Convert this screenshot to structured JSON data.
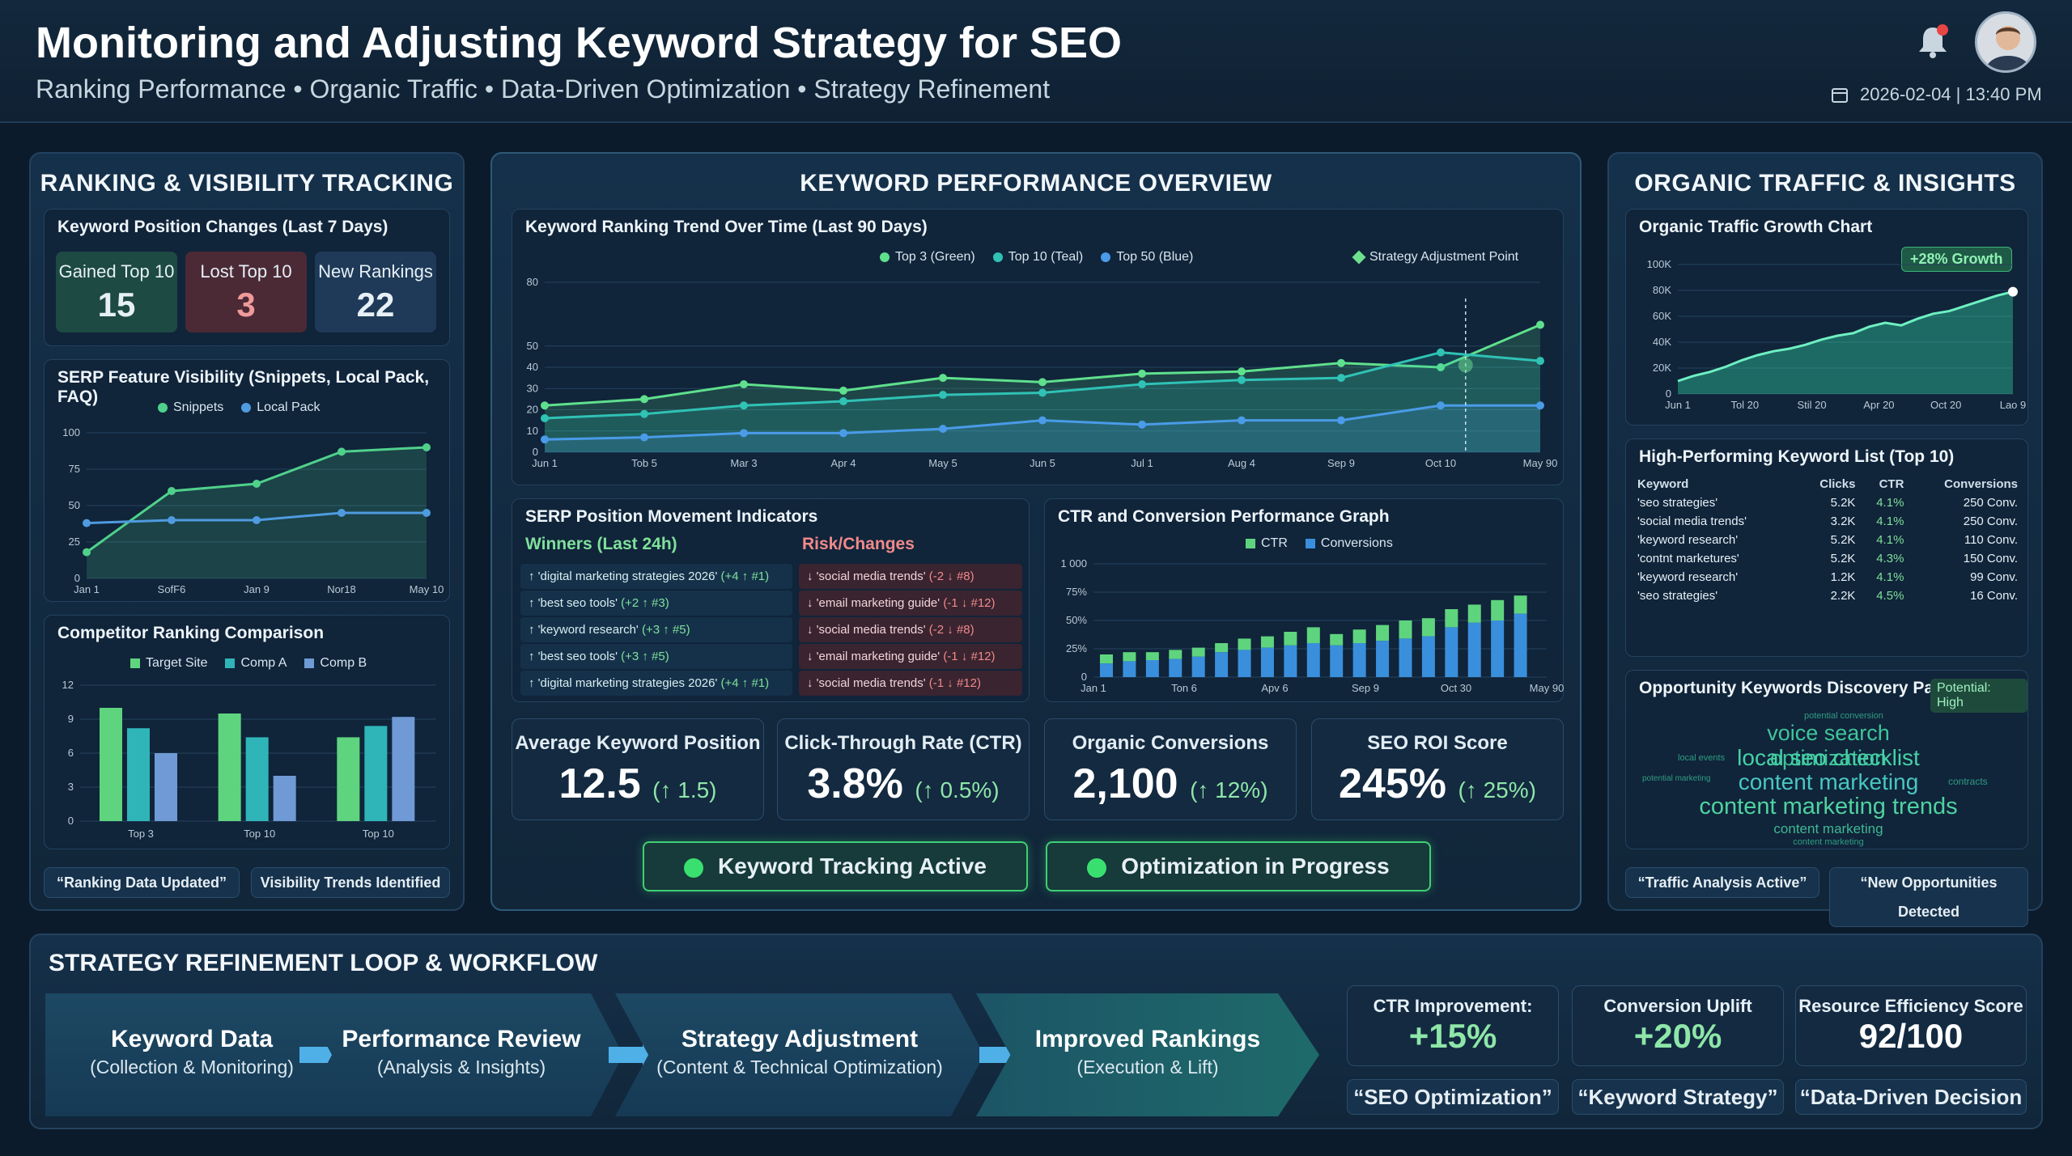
{
  "header": {
    "title": "Monitoring and Adjusting Keyword Strategy for SEO",
    "subtitle": "Ranking Performance • Organic Traffic • Data-Driven Optimization • Strategy Refinement",
    "datetime": "2026-02-04 | 13:40 PM",
    "icons": [
      "bell-icon",
      "avatar",
      "calendar-icon"
    ]
  },
  "left": {
    "title": "RANKING & VISIBILITY TRACKING",
    "position": {
      "title": "Keyword Position Changes (Last 7 Days)",
      "cards": [
        {
          "label": "Gained Top 10",
          "value": "15"
        },
        {
          "label": "Lost Top 10",
          "value": "3"
        },
        {
          "label": "New Rankings",
          "value": "22"
        }
      ]
    },
    "serp": {
      "title": "SERP Feature Visibility (Snippets, Local Pack, FAQ)",
      "legend": [
        "Snippets",
        "Local Pack"
      ]
    },
    "competitor": {
      "title": "Competitor Ranking Comparison",
      "legend": [
        "Target Site",
        "Comp A",
        "Comp B"
      ]
    },
    "tags": [
      "“Ranking Data Updated”",
      "Visibility Trends Identified"
    ]
  },
  "center": {
    "title": "KEYWORD PERFORMANCE OVERVIEW",
    "trend": {
      "title": "Keyword Ranking Trend Over Time (Last 90 Days)",
      "legend": [
        "Top 3 (Green)",
        "Top 10 (Teal)",
        "Top 50 (Blue)"
      ],
      "adjust": "Strategy Adjustment Point"
    },
    "serp_moves": {
      "title": "SERP Position Movement Indicators",
      "winners_title": "Winners (Last 24h)",
      "risk_title": "Risk/Changes",
      "winners": [
        {
          "kw": "↑ 'digital marketing strategies 2026'",
          "chg": "(+4 ↑ #1)"
        },
        {
          "kw": "↑ 'best seo tools'",
          "chg": "(+2 ↑ #3)"
        },
        {
          "kw": "↑ 'keyword research'",
          "chg": "(+3 ↑ #5)"
        },
        {
          "kw": "↑ 'best seo tools'",
          "chg": "(+3 ↑ #5)"
        },
        {
          "kw": "↑ 'digital marketing strategies 2026'",
          "chg": "(+4 ↑ #1)"
        }
      ],
      "risks": [
        {
          "kw": "↓ 'social media trends'",
          "chg": "(-2 ↓ #8)"
        },
        {
          "kw": "↓ 'email marketing guide'",
          "chg": "(-1 ↓ #12)"
        },
        {
          "kw": "↓ 'social media trends'",
          "chg": "(-2 ↓ #8)"
        },
        {
          "kw": "↓ 'email marketing guide'",
          "chg": "(-1 ↓ #12)"
        },
        {
          "kw": "↓ 'social media trends'",
          "chg": "(-1 ↓ #12)"
        }
      ]
    },
    "ctr": {
      "title": "CTR and Conversion Performance Graph",
      "legend": [
        "CTR",
        "Conversions"
      ]
    },
    "kpis": [
      {
        "label": "Average Keyword Position",
        "value": "12.5",
        "delta": "(↑ 1.5)"
      },
      {
        "label": "Click-Through Rate (CTR)",
        "value": "3.8%",
        "delta": "(↑ 0.5%)"
      },
      {
        "label": "Organic Conversions",
        "value": "2,100",
        "delta": "(↑ 12%)"
      },
      {
        "label": "SEO ROI Score",
        "value": "245%",
        "delta": "(↑ 25%)"
      }
    ],
    "status": [
      "Keyword Tracking Active",
      "Optimization in Progress"
    ]
  },
  "right": {
    "title": "ORGANIC TRAFFIC & INSIGHTS",
    "traffic": {
      "title": "Organic Traffic Growth Chart",
      "badge": "+28% Growth"
    },
    "table": {
      "title": "High-Performing Keyword List (Top 10)",
      "headers": [
        "Keyword",
        "Clicks",
        "CTR",
        "Conversions"
      ],
      "rows": [
        [
          "'seo strategies'",
          "5.2K",
          "4.1%",
          "250 Conv."
        ],
        [
          "'social media trends'",
          "3.2K",
          "4.1%",
          "250 Conv."
        ],
        [
          "'keyword research'",
          "5.2K",
          "4.1%",
          "110 Conv."
        ],
        [
          "'contnt marketures'",
          "5.2K",
          "4.3%",
          "150 Conv."
        ],
        [
          "'keyword research'",
          "1.2K",
          "4.1%",
          "99 Conv."
        ],
        [
          "'seo strategies'",
          "2.2K",
          "4.5%",
          "16 Conv."
        ]
      ]
    },
    "opp": {
      "title": "Opportunity Keywords Discovery Panel",
      "badge": "Potential: High",
      "words": [
        "potential conversion",
        "voice search optimization",
        "local events",
        "local seo checklist",
        "potential marketing",
        "content marketing",
        "contracts",
        "content marketing trends",
        "content marketing",
        "content marketing"
      ]
    },
    "tags": [
      "“Traffic Analysis Active”",
      "“New Opportunities Detected"
    ]
  },
  "bottom": {
    "title": "STRATEGY REFINEMENT LOOP & WORKFLOW",
    "steps": [
      {
        "a": "Keyword Data",
        "b": "(Collection & Monitoring)"
      },
      {
        "a": "Performance Review",
        "b": "(Analysis & Insights)"
      },
      {
        "a": "Strategy Adjustment",
        "b": "(Content & Technical Optimization)"
      },
      {
        "a": "Improved Rankings",
        "b": "(Execution & Lift)"
      }
    ],
    "metrics": [
      {
        "label": "CTR Improvement:",
        "value": "+15%"
      },
      {
        "label": "Conversion Uplift",
        "value": "+20%"
      },
      {
        "label": "Resource Efficiency Score",
        "value": "92/100"
      }
    ],
    "tags": [
      "“SEO Optimization”",
      "“Keyword Strategy”",
      "“Data-Driven Decision"
    ]
  },
  "chart_data": [
    {
      "type": "line",
      "title": "Keyword Ranking Trend Over Time (Last 90 Days)",
      "x": [
        "Jun 1",
        "Tob 5",
        "Mar 3",
        "Apr 4",
        "May 5",
        "Jun 5",
        "Jul 1",
        "Aug 4",
        "Sep 9",
        "Oct 10",
        "May 90"
      ],
      "yticks": [
        0,
        10,
        20,
        30,
        40,
        50,
        80
      ],
      "ylim": [
        0,
        80
      ],
      "series": [
        {
          "name": "Top 3 (Green)",
          "values": [
            22,
            25,
            32,
            29,
            35,
            33,
            37,
            38,
            42,
            40,
            60
          ]
        },
        {
          "name": "Top 10 (Teal)",
          "values": [
            16,
            18,
            22,
            24,
            27,
            28,
            32,
            34,
            35,
            47,
            43
          ]
        },
        {
          "name": "Top 50 (Blue)",
          "values": [
            6,
            7,
            9,
            9,
            11,
            15,
            13,
            15,
            15,
            22,
            22
          ]
        }
      ]
    },
    {
      "type": "line",
      "title": "SERP Feature Visibility (Snippets, Local Pack, FAQ)",
      "x": [
        "Jan 1",
        "SofF6",
        "Jan 9",
        "Nor18",
        "May 10"
      ],
      "yticks": [
        0,
        25,
        50,
        75,
        100
      ],
      "ylim": [
        0,
        100
      ],
      "series": [
        {
          "name": "Snippets",
          "values": [
            18,
            60,
            65,
            87,
            90
          ]
        },
        {
          "name": "Local Pack",
          "values": [
            38,
            40,
            40,
            45,
            45
          ]
        }
      ]
    },
    {
      "type": "bar",
      "title": "Competitor Ranking Comparison",
      "categories": [
        "Top 3",
        "Top 10",
        "Top 10"
      ],
      "yticks": [
        0,
        3,
        6,
        9,
        12
      ],
      "ylim": [
        0,
        12
      ],
      "series": [
        {
          "name": "Target Site",
          "values": [
            10,
            9.5,
            7.4
          ]
        },
        {
          "name": "Comp A",
          "values": [
            8.2,
            7.4,
            8.4
          ]
        },
        {
          "name": "Comp B",
          "values": [
            6,
            4,
            9.2
          ]
        }
      ]
    },
    {
      "type": "bar",
      "title": "CTR and Conversion Performance Graph",
      "x_ticks": [
        "Jan 1",
        "Ton 6",
        "Apv 6",
        "Sep 9",
        "Oct 30",
        "May 90"
      ],
      "yticks": [
        "0",
        "25%",
        "50%",
        "75%",
        "1 000"
      ],
      "ylim": [
        0,
        100
      ],
      "series": [
        {
          "name": "CTR",
          "values": [
            20,
            22,
            22,
            24,
            26,
            30,
            34,
            36,
            40,
            44,
            38,
            42,
            46,
            50,
            52,
            60,
            64,
            68,
            72
          ]
        },
        {
          "name": "Conversions",
          "values": [
            12,
            14,
            15,
            16,
            18,
            22,
            24,
            26,
            28,
            30,
            28,
            30,
            32,
            34,
            36,
            44,
            48,
            50,
            56
          ]
        }
      ]
    },
    {
      "type": "area",
      "title": "Organic Traffic Growth Chart",
      "x_ticks": [
        "Jun 1",
        "Tol 20",
        "Stil 20",
        "Apr 20",
        "Oct 20",
        "Lao 9"
      ],
      "yticks": [
        "0",
        "20K",
        "40K",
        "60K",
        "80K",
        "100K"
      ],
      "ylim": [
        0,
        100
      ],
      "values": [
        10,
        14,
        17,
        21,
        26,
        30,
        33,
        35,
        38,
        42,
        45,
        47,
        52,
        55,
        53,
        58,
        62,
        64,
        68,
        72,
        76,
        79
      ]
    }
  ]
}
